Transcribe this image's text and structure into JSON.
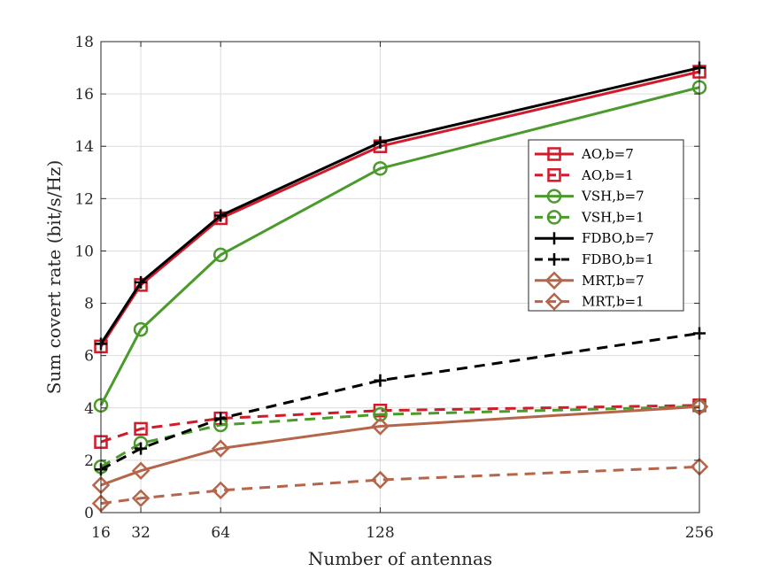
{
  "chart_data": {
    "type": "line",
    "xlabel": "Number of antennas",
    "ylabel": "Sum covert rate (bit/s/Hz)",
    "x": [
      16,
      32,
      64,
      128,
      256
    ],
    "xticks": [
      16,
      32,
      64,
      128,
      256
    ],
    "xlim": [
      16,
      256
    ],
    "yticks": [
      0,
      2,
      4,
      6,
      8,
      10,
      12,
      14,
      16,
      18
    ],
    "ylim": [
      0,
      18
    ],
    "grid": true,
    "legend_position": "right",
    "series": [
      {
        "name": "AO,b=7",
        "values": [
          6.35,
          8.7,
          11.25,
          14.0,
          16.85
        ],
        "color": "#d11a2a",
        "dash": "solid",
        "marker": "square"
      },
      {
        "name": "AO,b=1",
        "values": [
          2.7,
          3.2,
          3.6,
          3.9,
          4.1
        ],
        "color": "#d11a2a",
        "dash": "dashed",
        "marker": "square"
      },
      {
        "name": "VSH,b=7",
        "values": [
          4.1,
          7.0,
          9.85,
          13.15,
          16.25
        ],
        "color": "#4a9a2c",
        "dash": "solid",
        "marker": "circle"
      },
      {
        "name": "VSH,b=1",
        "values": [
          1.75,
          2.65,
          3.35,
          3.75,
          4.05
        ],
        "color": "#4a9a2c",
        "dash": "dashed",
        "marker": "circle"
      },
      {
        "name": "FDBO,b=7",
        "values": [
          6.45,
          8.8,
          11.35,
          14.15,
          17.0
        ],
        "color": "#000000",
        "dash": "solid",
        "marker": "plus"
      },
      {
        "name": "FDBO,b=1",
        "values": [
          1.65,
          2.45,
          3.6,
          5.05,
          6.85
        ],
        "color": "#000000",
        "dash": "dashed",
        "marker": "plus"
      },
      {
        "name": "MRT,b=7",
        "values": [
          1.05,
          1.6,
          2.45,
          3.3,
          4.05
        ],
        "color": "#b5654a",
        "dash": "solid",
        "marker": "diamond"
      },
      {
        "name": "MRT,b=1",
        "values": [
          0.35,
          0.55,
          0.85,
          1.25,
          1.75
        ],
        "color": "#b5654a",
        "dash": "dashed",
        "marker": "diamond"
      }
    ]
  }
}
